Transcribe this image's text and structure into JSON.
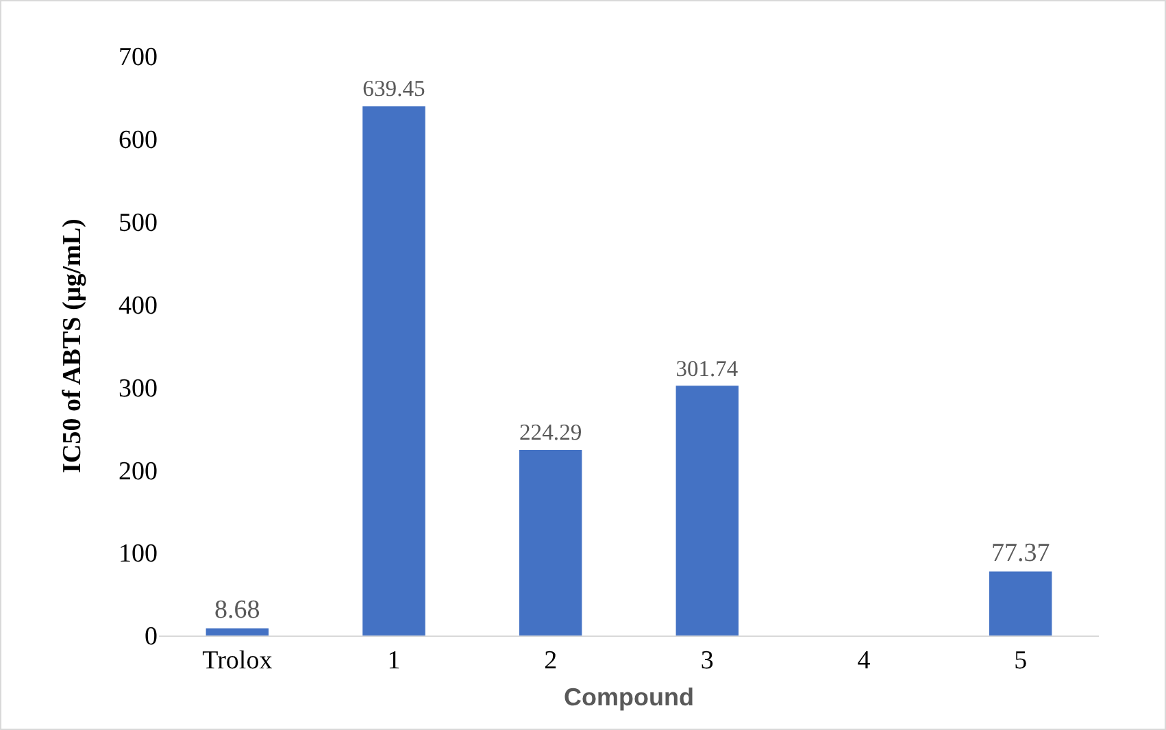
{
  "chart_data": {
    "type": "bar",
    "xlabel": "Compound",
    "ylabel": "IC50 of ABTS (µg/mL)",
    "categories": [
      "Trolox",
      "1",
      "2",
      "3",
      "4",
      "5"
    ],
    "values": [
      8.68,
      639.45,
      224.29,
      301.74,
      null,
      77.37
    ],
    "color": "#4472c4",
    "ylim": [
      0,
      700
    ],
    "yticks": [
      0,
      100,
      200,
      300,
      400,
      500,
      600,
      700
    ],
    "grid": false,
    "data_labels": true
  }
}
